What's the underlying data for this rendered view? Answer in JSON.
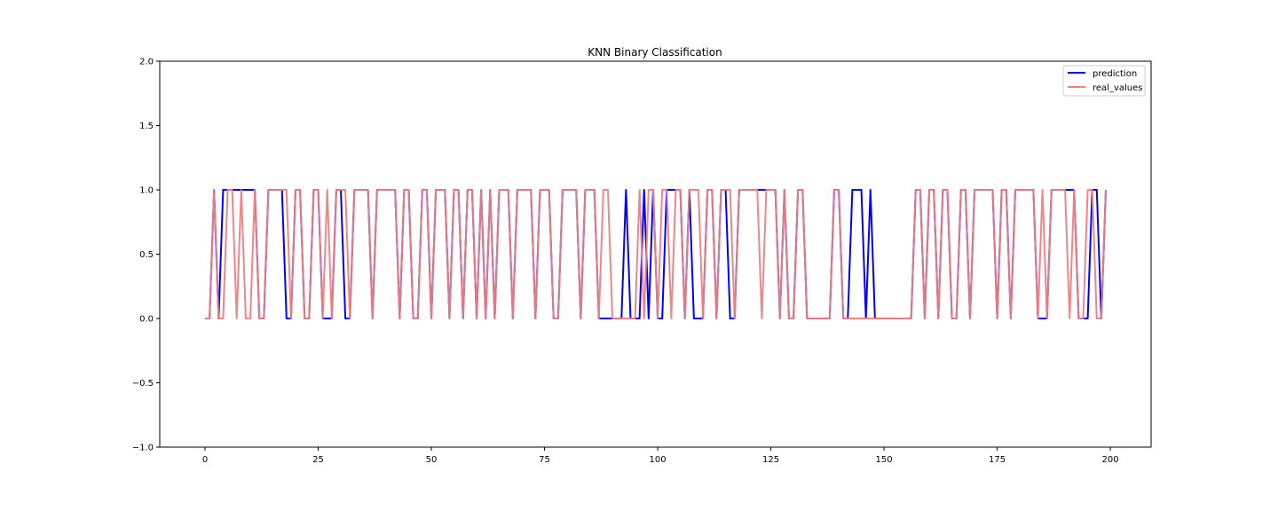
{
  "chart_data": {
    "type": "line",
    "title": "KNN Binary Classification",
    "xlabel": "",
    "ylabel": "",
    "xlim": [
      -10,
      209
    ],
    "ylim": [
      -1.0,
      2.0
    ],
    "xticks": [
      0,
      25,
      50,
      75,
      100,
      125,
      150,
      175,
      200
    ],
    "xtick_labels": [
      "0",
      "25",
      "50",
      "75",
      "100",
      "125",
      "150",
      "175",
      "200"
    ],
    "yticks": [
      -1.0,
      -0.5,
      0.0,
      0.5,
      1.0,
      1.5,
      2.0
    ],
    "ytick_labels": [
      "−1.0",
      "−0.5",
      "0.0",
      "0.5",
      "1.0",
      "1.5",
      "2.0"
    ],
    "grid": false,
    "legend_position": "top-right",
    "x": [
      0,
      1,
      2,
      3,
      4,
      5,
      6,
      7,
      8,
      9,
      10,
      11,
      12,
      13,
      14,
      15,
      16,
      17,
      18,
      19,
      20,
      21,
      22,
      23,
      24,
      25,
      26,
      27,
      28,
      29,
      30,
      31,
      32,
      33,
      34,
      35,
      36,
      37,
      38,
      39,
      40,
      41,
      42,
      43,
      44,
      45,
      46,
      47,
      48,
      49,
      50,
      51,
      52,
      53,
      54,
      55,
      56,
      57,
      58,
      59,
      60,
      61,
      62,
      63,
      64,
      65,
      66,
      67,
      68,
      69,
      70,
      71,
      72,
      73,
      74,
      75,
      76,
      77,
      78,
      79,
      80,
      81,
      82,
      83,
      84,
      85,
      86,
      87,
      88,
      89,
      90,
      91,
      92,
      93,
      94,
      95,
      96,
      97,
      98,
      99,
      100,
      101,
      102,
      103,
      104,
      105,
      106,
      107,
      108,
      109,
      110,
      111,
      112,
      113,
      114,
      115,
      116,
      117,
      118,
      119,
      120,
      121,
      122,
      123,
      124,
      125,
      126,
      127,
      128,
      129,
      130,
      131,
      132,
      133,
      134,
      135,
      136,
      137,
      138,
      139,
      140,
      141,
      142,
      143,
      144,
      145,
      146,
      147,
      148,
      149,
      150,
      151,
      152,
      153,
      154,
      155,
      156,
      157,
      158,
      159,
      160,
      161,
      162,
      163,
      164,
      165,
      166,
      167,
      168,
      169,
      170,
      171,
      172,
      173,
      174,
      175,
      176,
      177,
      178,
      179,
      180,
      181,
      182,
      183,
      184,
      185,
      186,
      187,
      188,
      189,
      190,
      191,
      192,
      193,
      194,
      195,
      196,
      197,
      198,
      199
    ],
    "series": [
      {
        "name": "prediction",
        "color": "#0000ff",
        "values": [
          0,
          0,
          1,
          0,
          1,
          1,
          1,
          1,
          1,
          1,
          1,
          1,
          0,
          0,
          1,
          1,
          1,
          1,
          0,
          0,
          1,
          1,
          0,
          0,
          1,
          1,
          0,
          0,
          0,
          1,
          1,
          0,
          0,
          1,
          1,
          1,
          1,
          0,
          1,
          1,
          1,
          1,
          1,
          0,
          1,
          1,
          0,
          0,
          1,
          1,
          0,
          1,
          1,
          1,
          0,
          1,
          1,
          0,
          1,
          1,
          0,
          1,
          0,
          1,
          0,
          1,
          1,
          1,
          0,
          1,
          1,
          1,
          1,
          0,
          1,
          1,
          1,
          0,
          0,
          1,
          1,
          1,
          1,
          0,
          1,
          1,
          1,
          0,
          0,
          0,
          0,
          0,
          0,
          1,
          0,
          0,
          0,
          1,
          0,
          1,
          0,
          0,
          1,
          1,
          1,
          1,
          0,
          1,
          0,
          0,
          0,
          1,
          1,
          0,
          1,
          1,
          0,
          0,
          1,
          1,
          1,
          1,
          1,
          1,
          1,
          1,
          1,
          0,
          1,
          0,
          0,
          1,
          1,
          0,
          0,
          0,
          0,
          0,
          0,
          1,
          1,
          0,
          0,
          1,
          1,
          1,
          0,
          1,
          0,
          0,
          0,
          0,
          0,
          0,
          0,
          0,
          0,
          1,
          1,
          0,
          1,
          1,
          0,
          1,
          1,
          0,
          0,
          1,
          1,
          0,
          1,
          1,
          1,
          1,
          1,
          0,
          1,
          1,
          0,
          1,
          1,
          1,
          1,
          1,
          0,
          0,
          0,
          1,
          1,
          1,
          1,
          1,
          1,
          0,
          0,
          0,
          1,
          1,
          0,
          1
        ]
      },
      {
        "name": "real_values",
        "color": "#f08080",
        "values": [
          0,
          0,
          1,
          0,
          0,
          1,
          1,
          0,
          1,
          0,
          0,
          1,
          0,
          0,
          1,
          1,
          1,
          1,
          1,
          0,
          1,
          1,
          0,
          0,
          1,
          1,
          0,
          1,
          0,
          1,
          1,
          1,
          0,
          1,
          1,
          1,
          1,
          0,
          1,
          1,
          1,
          1,
          1,
          0,
          1,
          1,
          0,
          0,
          1,
          1,
          0,
          1,
          1,
          1,
          0,
          1,
          1,
          0,
          1,
          1,
          0,
          1,
          0,
          1,
          0,
          1,
          1,
          1,
          0,
          1,
          1,
          1,
          1,
          0,
          1,
          1,
          1,
          0,
          0,
          1,
          1,
          1,
          1,
          0,
          1,
          1,
          1,
          0,
          1,
          1,
          0,
          0,
          0,
          0,
          0,
          0,
          1,
          0,
          1,
          1,
          0,
          1,
          1,
          0,
          1,
          1,
          0,
          1,
          1,
          1,
          0,
          1,
          1,
          0,
          1,
          1,
          1,
          0,
          1,
          1,
          1,
          1,
          1,
          0,
          1,
          1,
          1,
          0,
          1,
          0,
          0,
          1,
          1,
          0,
          0,
          0,
          0,
          0,
          0,
          1,
          1,
          0,
          0,
          0,
          0,
          0,
          0,
          0,
          0,
          0,
          0,
          0,
          0,
          0,
          0,
          0,
          0,
          1,
          1,
          0,
          1,
          1,
          0,
          1,
          1,
          0,
          0,
          1,
          1,
          0,
          1,
          1,
          1,
          1,
          1,
          0,
          1,
          1,
          0,
          1,
          1,
          1,
          1,
          1,
          0,
          1,
          0,
          1,
          1,
          1,
          1,
          0,
          1,
          0,
          0,
          1,
          1,
          0,
          0,
          1
        ]
      }
    ]
  }
}
